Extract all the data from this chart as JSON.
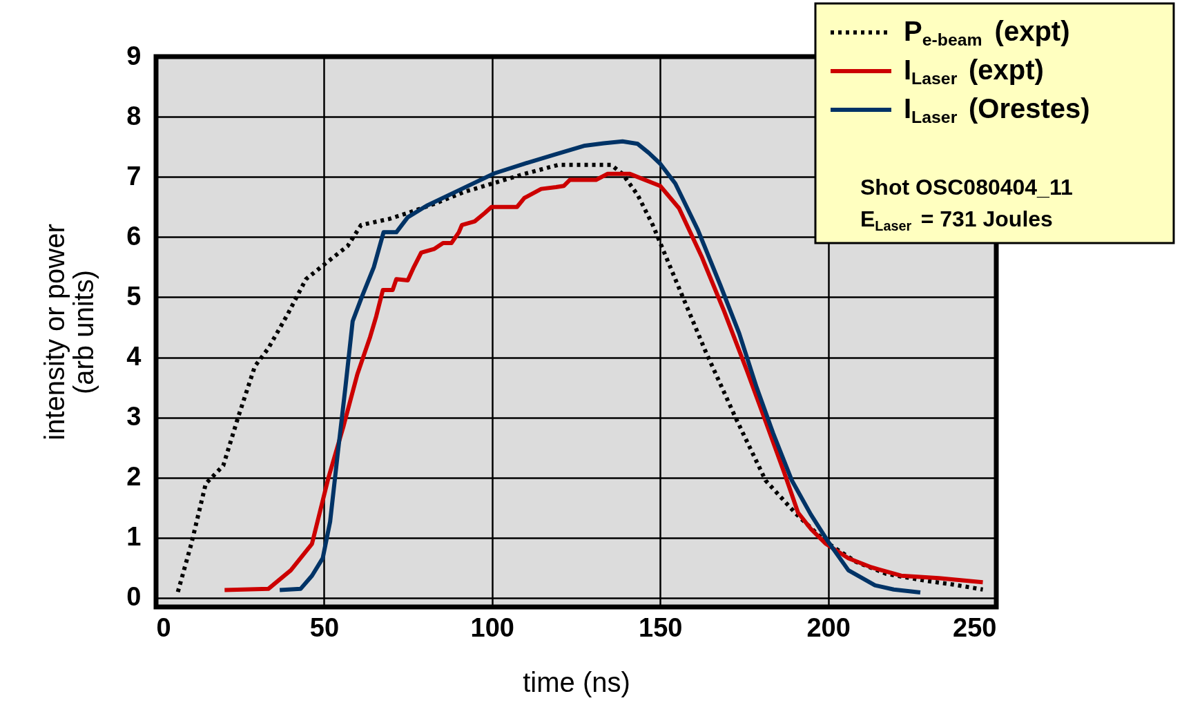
{
  "chart_data": {
    "type": "line",
    "xlabel": "time (ns)",
    "ylabel": "intensity or power\n(arb units)",
    "xlim": [
      0,
      250
    ],
    "xticks": [
      0,
      50,
      100,
      150,
      200,
      250
    ],
    "ylim": [
      -0.15,
      9
    ],
    "yticks": [
      0,
      1,
      2,
      3,
      4,
      5,
      6,
      7,
      8,
      9
    ],
    "grid": true,
    "legend": "top right",
    "marker": "none",
    "annotations": [
      "Shot OSC080404_11",
      "E$_{Laser}$ = 731 Joules"
    ],
    "series": [
      {
        "name": "P$_{e-beam}$ (expt)",
        "color": "#000000",
        "line_style": "dotted",
        "x": [
          6.5,
          10.5,
          14.8,
          20,
          24.4,
          29.4,
          33.4,
          39,
          44.6,
          51.3,
          57,
          61,
          69.3,
          74.9,
          82.7,
          91.7,
          100.7,
          109.6,
          119.7,
          127.6,
          135.4,
          138.8,
          143.3,
          147.8,
          154.5,
          163.5,
          172.4,
          181.4,
          190.4,
          199.3,
          208.3,
          217.3,
          228.5,
          237.4,
          246
        ],
        "values": [
          0.1,
          0.9,
          1.9,
          2.2,
          3.0,
          3.85,
          4.15,
          4.7,
          5.3,
          5.6,
          5.85,
          6.2,
          6.3,
          6.4,
          6.55,
          6.75,
          6.9,
          7.05,
          7.2,
          7.2,
          7.2,
          7.05,
          6.7,
          6.2,
          5.3,
          4.1,
          3.0,
          1.95,
          1.4,
          0.93,
          0.6,
          0.4,
          0.29,
          0.22,
          0.14
        ]
      },
      {
        "name": "I$_{Laser}$ (expt)",
        "color": "#cc0000",
        "line_style": "solid",
        "x": [
          20.4,
          33.4,
          40.1,
          46.4,
          51.3,
          55.8,
          59.9,
          63.7,
          65.5,
          67.5,
          70.4,
          71.5,
          74.9,
          76.7,
          78.9,
          82.7,
          85.4,
          87.9,
          90.1,
          91,
          94.8,
          97.8,
          99.8,
          107.4,
          109.6,
          114.6,
          119,
          121.3,
          123.1,
          130.9,
          134.3,
          141,
          150,
          155.6,
          162.3,
          169,
          175.8,
          181.4,
          187,
          191,
          194.8,
          199.3,
          206,
          212.8,
          221.7,
          232.9,
          246
        ],
        "values": [
          0.13,
          0.15,
          0.46,
          0.9,
          2.0,
          2.86,
          3.72,
          4.34,
          4.68,
          5.12,
          5.12,
          5.3,
          5.28,
          5.5,
          5.74,
          5.8,
          5.9,
          5.9,
          6.08,
          6.2,
          6.26,
          6.4,
          6.5,
          6.5,
          6.65,
          6.8,
          6.83,
          6.85,
          6.95,
          6.95,
          7.05,
          7.05,
          6.85,
          6.48,
          5.68,
          4.77,
          3.78,
          2.93,
          2.07,
          1.42,
          1.15,
          0.9,
          0.66,
          0.51,
          0.37,
          0.33,
          0.26
        ]
      },
      {
        "name": "I$_{Laser}$ (Orestes)",
        "color": "#003366",
        "line_style": "solid",
        "x": [
          36.8,
          43,
          46.4,
          49.6,
          51.8,
          54,
          56.3,
          58.5,
          61.2,
          64.8,
          67.7,
          71.5,
          74.9,
          80.5,
          91.7,
          100.7,
          109.6,
          118.6,
          127.6,
          133.2,
          138.8,
          143.3,
          146.6,
          150,
          154.5,
          161.2,
          167.9,
          173.5,
          178.7,
          183.6,
          189.2,
          194.8,
          199.8,
          206,
          213.9,
          219.5,
          227.4
        ],
        "values": [
          0.13,
          0.15,
          0.37,
          0.66,
          1.27,
          2.37,
          3.48,
          4.6,
          5.0,
          5.5,
          6.08,
          6.08,
          6.33,
          6.52,
          6.82,
          7.06,
          7.22,
          7.37,
          7.52,
          7.56,
          7.59,
          7.55,
          7.4,
          7.22,
          6.89,
          6.12,
          5.2,
          4.4,
          3.5,
          2.74,
          1.95,
          1.39,
          0.95,
          0.46,
          0.21,
          0.14,
          0.09
        ]
      }
    ]
  }
}
